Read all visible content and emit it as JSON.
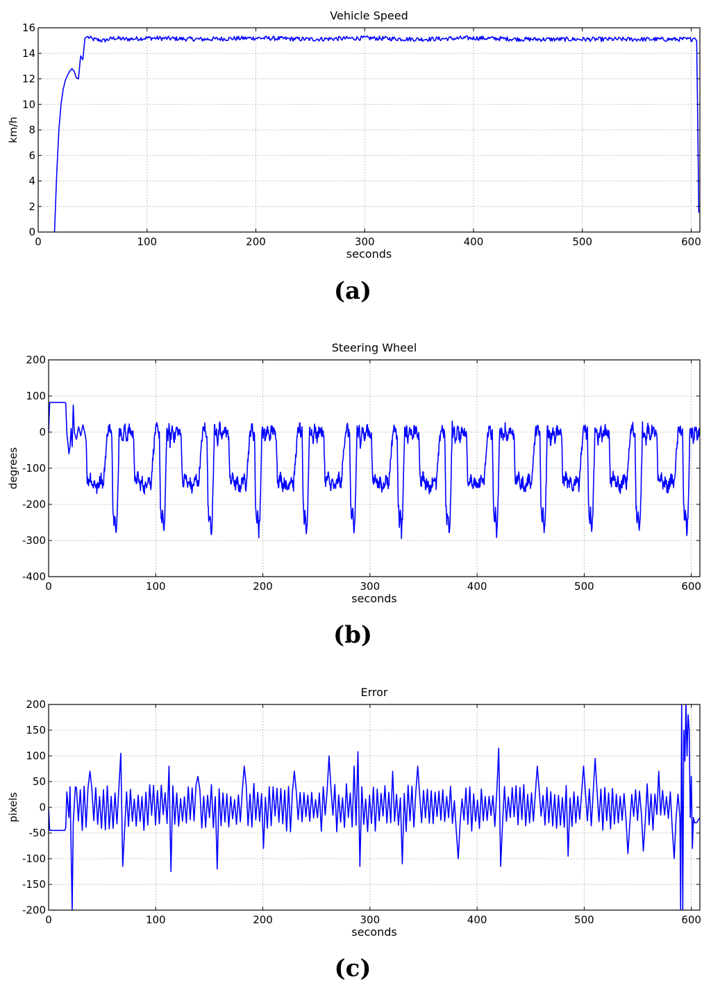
{
  "figure": {
    "panel_labels": [
      "(a)",
      "(b)",
      "(c)"
    ]
  },
  "chart_data": [
    {
      "type": "line",
      "title": "Vehicle Speed",
      "xlabel": "seconds",
      "ylabel": "km/h",
      "xlim": [
        0,
        608
      ],
      "ylim": [
        0,
        16
      ],
      "xticks": [
        0,
        100,
        200,
        300,
        400,
        500,
        600
      ],
      "yticks": [
        0,
        2,
        4,
        6,
        8,
        10,
        12,
        14,
        16
      ],
      "grid": true,
      "series_color": "#0000ff",
      "x": [
        15,
        17,
        19,
        21,
        23,
        25,
        27,
        29,
        31,
        33,
        35,
        37,
        39,
        41,
        43,
        45,
        50,
        60,
        70,
        80,
        100,
        150,
        200,
        250,
        300,
        350,
        400,
        450,
        500,
        550,
        600,
        603,
        605,
        606,
        607
      ],
      "y": [
        0,
        4.5,
        8.0,
        10.0,
        11.2,
        11.9,
        12.3,
        12.6,
        12.8,
        12.6,
        12.1,
        12.0,
        13.8,
        13.5,
        15.2,
        15.3,
        15.1,
        15.0,
        15.2,
        15.1,
        15.2,
        15.1,
        15.2,
        15.1,
        15.2,
        15.1,
        15.2,
        15.1,
        15.1,
        15.1,
        15.1,
        15.2,
        15.0,
        9.0,
        1.5
      ]
    },
    {
      "type": "line",
      "title": "Steering Wheel",
      "xlabel": "seconds",
      "ylabel": "degrees",
      "xlim": [
        0,
        608
      ],
      "ylim": [
        -400,
        200
      ],
      "xticks": [
        0,
        100,
        200,
        300,
        400,
        500,
        600
      ],
      "yticks": [
        -400,
        -300,
        -200,
        -100,
        0,
        100,
        200
      ],
      "grid": true,
      "series_color": "#0000ff",
      "intro_x": [
        0,
        1,
        15,
        16,
        17,
        19,
        20,
        21,
        22,
        23,
        24,
        26,
        28,
        30,
        32,
        34
      ],
      "intro_y": [
        0,
        82,
        82,
        80,
        0,
        -60,
        -40,
        10,
        -40,
        75,
        0,
        -20,
        15,
        -10,
        20,
        -5
      ],
      "cycle_start": 35,
      "cycle_period": 44.4,
      "cycle_count": 13,
      "cycle_x_offsets": [
        0,
        1,
        2,
        4,
        6,
        8,
        10,
        12,
        14,
        16,
        18,
        20,
        22,
        23,
        24,
        25,
        26,
        27,
        28,
        29,
        30,
        31,
        32,
        33,
        34,
        36,
        38,
        40,
        42,
        44.4
      ],
      "cycle_y": [
        -10,
        -130,
        -140,
        -120,
        -150,
        -135,
        -160,
        -140,
        -125,
        -150,
        -70,
        0,
        15,
        -10,
        0,
        -200,
        -250,
        -220,
        -280,
        -240,
        -120,
        20,
        -10,
        10,
        -30,
        15,
        -20,
        10,
        0,
        -10
      ],
      "outro_x": [
        0,
        1,
        2,
        4,
        6,
        8,
        10,
        12,
        13,
        14,
        16,
        18,
        20
      ],
      "outro_y": [
        -10,
        -250,
        -300,
        -200,
        -280,
        40,
        -10,
        20,
        110,
        -100,
        -20,
        0,
        40
      ]
    },
    {
      "type": "line",
      "title": "Error",
      "xlabel": "seconds",
      "ylabel": "pixels",
      "xlim": [
        0,
        608
      ],
      "ylim": [
        -200,
        200
      ],
      "xticks": [
        0,
        100,
        200,
        300,
        400,
        500,
        600
      ],
      "yticks": [
        -200,
        -150,
        -100,
        -50,
        0,
        50,
        100,
        150,
        200
      ],
      "grid": true,
      "series_color": "#0000ff",
      "intro_x": [
        0,
        1,
        15,
        16,
        17,
        19,
        20,
        22,
        23,
        25
      ],
      "intro_y": [
        0,
        -45,
        -45,
        -40,
        30,
        -20,
        40,
        -200,
        -30,
        40
      ],
      "osc_start": 26,
      "osc_end": 590,
      "osc_step": 1.8,
      "osc_amplitude": 30,
      "spikes": [
        [
          38,
          70
        ],
        [
          68,
          105
        ],
        [
          70,
          -115
        ],
        [
          112,
          80
        ],
        [
          114,
          -125
        ],
        [
          140,
          60
        ],
        [
          157,
          120
        ],
        [
          158,
          -120
        ],
        [
          182,
          80
        ],
        [
          200,
          -80
        ],
        [
          230,
          70
        ],
        [
          262,
          100
        ],
        [
          285,
          80
        ],
        [
          288,
          108
        ],
        [
          290,
          -115
        ],
        [
          322,
          70
        ],
        [
          330,
          -110
        ],
        [
          345,
          80
        ],
        [
          383,
          -100
        ],
        [
          420,
          115
        ],
        [
          422,
          -115
        ],
        [
          457,
          80
        ],
        [
          485,
          -95
        ],
        [
          500,
          80
        ],
        [
          510,
          95
        ],
        [
          540,
          -90
        ],
        [
          555,
          150
        ],
        [
          556,
          -85
        ],
        [
          570,
          70
        ],
        [
          584,
          -100
        ]
      ],
      "outro_x": [
        590,
        591,
        592,
        593,
        594,
        595,
        596,
        597,
        598,
        599,
        600,
        601,
        602,
        603,
        605,
        608
      ],
      "outro_y": [
        -200,
        200,
        -200,
        150,
        90,
        200,
        100,
        180,
        150,
        -20,
        60,
        -80,
        -20,
        -30,
        -30,
        -20
      ]
    }
  ]
}
